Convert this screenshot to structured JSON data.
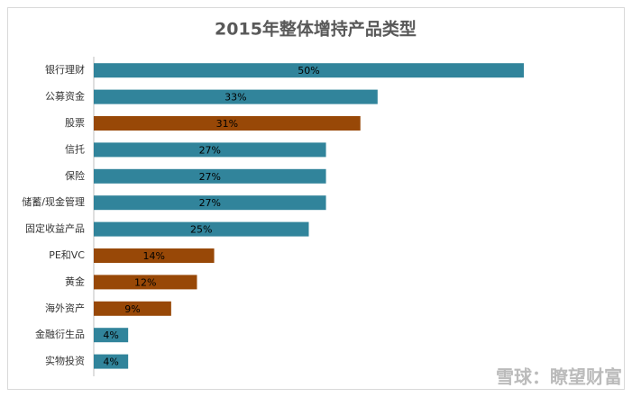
{
  "chart_data": {
    "type": "hbar",
    "title": "2015年整体增持产品类型",
    "categories": [
      "银行理财",
      "公募资金",
      "股票",
      "信托",
      "保险",
      "储蓄/现金管理",
      "固定收益产品",
      "PE和VC",
      "黄金",
      "海外资产",
      "金融衍生品",
      "实物投资"
    ],
    "values": [
      50,
      33,
      31,
      27,
      27,
      27,
      25,
      14,
      12,
      9,
      4,
      4
    ],
    "value_labels": [
      "50%",
      "33%",
      "31%",
      "27%",
      "27%",
      "27%",
      "25%",
      "14%",
      "12%",
      "9%",
      "4%",
      "4%"
    ],
    "colors": [
      "#31849b",
      "#31849b",
      "#984807",
      "#31849b",
      "#31849b",
      "#31849b",
      "#31849b",
      "#984807",
      "#984807",
      "#984807",
      "#31849b",
      "#31849b"
    ],
    "annotation": "雪球：瞭望财富"
  }
}
